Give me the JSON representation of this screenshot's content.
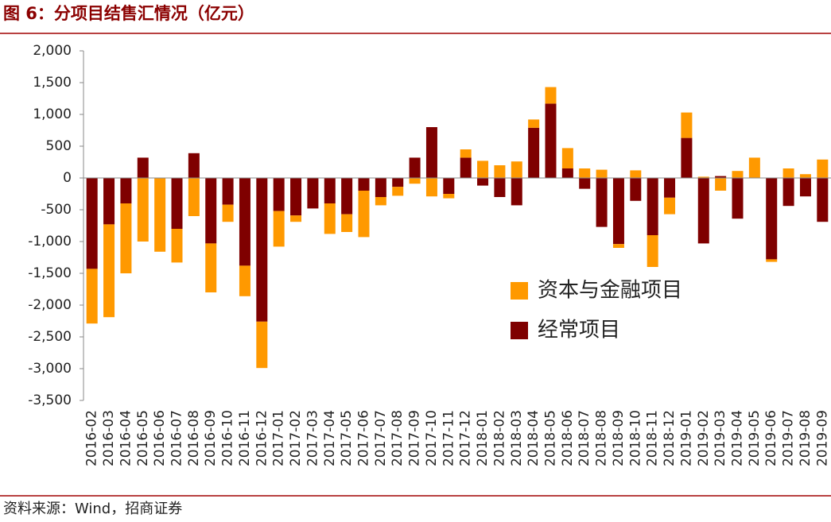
{
  "chart_data": {
    "type": "bar",
    "stacked": true,
    "title": "图 6：分项目结售汇情况（亿元）",
    "source": "资料来源：Wind，招商证券",
    "categories": [
      "2016-02",
      "2016-03",
      "2016-04",
      "2016-05",
      "2016-06",
      "2016-07",
      "2016-08",
      "2016-09",
      "2016-10",
      "2016-11",
      "2016-12",
      "2017-01",
      "2017-02",
      "2017-03",
      "2017-04",
      "2017-05",
      "2017-06",
      "2017-07",
      "2017-08",
      "2017-09",
      "2017-10",
      "2017-11",
      "2017-12",
      "2018-01",
      "2018-02",
      "2018-03",
      "2018-04",
      "2018-05",
      "2018-06",
      "2018-07",
      "2018-08",
      "2018-09",
      "2018-10",
      "2018-11",
      "2018-12",
      "2019-01",
      "2019-02",
      "2019-03",
      "2019-04",
      "2019-05",
      "2019-06",
      "2019-07",
      "2019-08",
      "2019-09"
    ],
    "series": [
      {
        "name": "经常项目",
        "color": "#7f0000",
        "values": [
          -1430,
          -730,
          -400,
          320,
          0,
          -800,
          390,
          -1030,
          -420,
          -1380,
          -2260,
          -520,
          -590,
          -480,
          -400,
          -570,
          -200,
          -300,
          -140,
          320,
          800,
          -250,
          320,
          -120,
          -300,
          -430,
          790,
          1170,
          150,
          -170,
          -770,
          -1040,
          -360,
          -900,
          -310,
          630,
          -1030,
          30,
          -640,
          0,
          -1280,
          -440,
          -290,
          -690
        ]
      },
      {
        "name": "资本与金融项目",
        "color": "#ff9900",
        "values": [
          -860,
          -1460,
          -1100,
          -1000,
          -1160,
          -530,
          -600,
          -770,
          -270,
          -480,
          -730,
          -560,
          -100,
          0,
          -480,
          -280,
          -730,
          -130,
          -140,
          -90,
          -290,
          -70,
          130,
          270,
          200,
          260,
          130,
          260,
          320,
          150,
          130,
          -60,
          120,
          -500,
          -260,
          400,
          20,
          -200,
          110,
          320,
          -40,
          150,
          60,
          290
        ]
      }
    ],
    "ylim": [
      -3500,
      2000
    ],
    "yticks": [
      {
        "value": 2000,
        "label": "2,000"
      },
      {
        "value": 1500,
        "label": "1,500"
      },
      {
        "value": 1000,
        "label": "1,000"
      },
      500,
      0,
      -500,
      {
        "value": -1000,
        "label": "-1,000"
      },
      {
        "value": -1500,
        "label": "-1,500"
      },
      {
        "value": -2000,
        "label": "-2,000"
      },
      {
        "value": -2500,
        "label": "-2,500"
      },
      {
        "value": -3000,
        "label": "-3,000"
      },
      {
        "value": -3500,
        "label": "-3,500"
      }
    ],
    "legend": "inside-right"
  }
}
